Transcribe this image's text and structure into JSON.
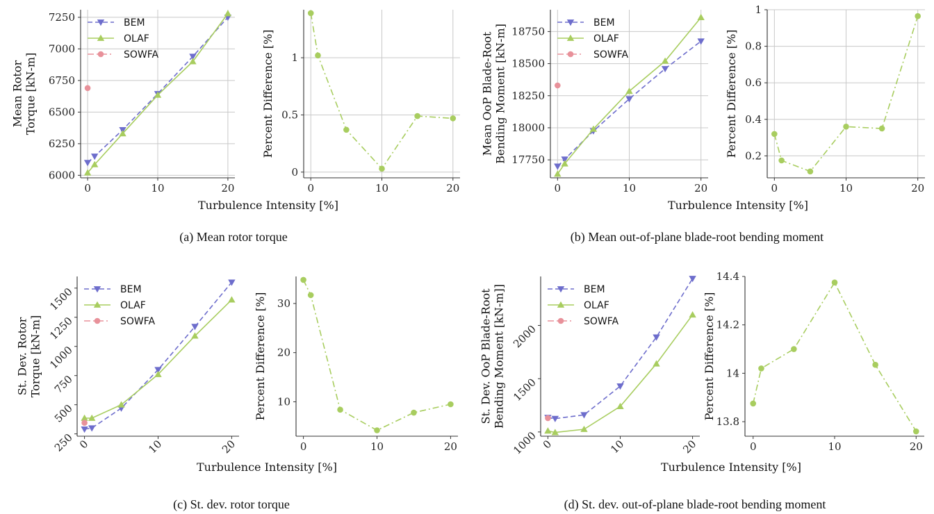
{
  "captions": {
    "a": "(a)  Mean rotor torque",
    "b": "(b)  Mean out-of-plane blade-root bending moment",
    "c": "(c)  St. dev. rotor torque",
    "d": "(d)  St. dev. out-of-plane blade-root bending moment"
  },
  "shared_xlabel": "Turbulence Intensity [%]",
  "colors": {
    "BEM": "#6d6dcc",
    "OLAF": "#a8cd5f",
    "SOWFA": "#e8919a",
    "grid": "#c8c8c8"
  },
  "chart_data": [
    {
      "id": "a-left",
      "type": "line",
      "xlim": [
        -1,
        21
      ],
      "ylim": [
        5980,
        7310
      ],
      "xticks": [
        0,
        10,
        20
      ],
      "yticks": [
        6000,
        6250,
        6500,
        6750,
        7000,
        7250
      ],
      "rotate_ticks": false,
      "ylabel": [
        "Mean Rotor",
        "Torque [kN-m]"
      ],
      "xlabel": "Turbulence Intensity [%]",
      "legend": "top-left",
      "grid": true,
      "series": [
        {
          "name": "BEM",
          "x": [
            0,
            1,
            5,
            10,
            15,
            20
          ],
          "y": [
            6100,
            6150,
            6360,
            6645,
            6940,
            7250
          ]
        },
        {
          "name": "OLAF",
          "x": [
            0,
            1,
            5,
            10,
            15,
            20
          ],
          "y": [
            6020,
            6085,
            6330,
            6635,
            6900,
            7280
          ]
        },
        {
          "name": "SOWFA",
          "x": [
            0
          ],
          "y": [
            6690
          ]
        }
      ]
    },
    {
      "id": "a-right",
      "type": "line",
      "xlim": [
        -1,
        21
      ],
      "ylim": [
        -0.05,
        1.42
      ],
      "xticks": [
        0,
        10,
        20
      ],
      "yticks": [
        0.0,
        0.5,
        1.0
      ],
      "rotate_ticks": false,
      "ylabel": [
        "Percent Difference [%]"
      ],
      "xlabel": "",
      "legend": "none",
      "grid": true,
      "series": [
        {
          "name": "",
          "x": [
            0,
            1,
            5,
            10,
            15,
            20
          ],
          "y": [
            1.39,
            1.02,
            0.37,
            0.03,
            0.49,
            0.47
          ]
        }
      ]
    },
    {
      "id": "b-left",
      "type": "line",
      "xlim": [
        -1,
        21
      ],
      "ylim": [
        17610,
        18920
      ],
      "xticks": [
        0,
        10,
        20
      ],
      "yticks": [
        17750,
        18000,
        18250,
        18500,
        18750
      ],
      "rotate_ticks": false,
      "ylabel": [
        "Mean OoP Blade-Root",
        "Bending Moment [kN-m]"
      ],
      "xlabel": "Turbulence Intensity [%]",
      "legend": "top-left",
      "grid": true,
      "series": [
        {
          "name": "BEM",
          "x": [
            0,
            1,
            5,
            10,
            15,
            20
          ],
          "y": [
            17700,
            17755,
            17975,
            18225,
            18460,
            18675
          ]
        },
        {
          "name": "OLAF",
          "x": [
            0,
            1,
            5,
            10,
            15,
            20
          ],
          "y": [
            17640,
            17720,
            17990,
            18285,
            18520,
            18860
          ]
        },
        {
          "name": "SOWFA",
          "x": [
            0
          ],
          "y": [
            18330
          ]
        }
      ]
    },
    {
      "id": "b-right",
      "type": "line",
      "xlim": [
        -1,
        21
      ],
      "ylim": [
        0.08,
        1.0
      ],
      "xticks": [
        0,
        10,
        20
      ],
      "yticks": [
        0.2,
        0.4,
        0.6,
        0.8,
        1.0
      ],
      "rotate_ticks": false,
      "ylabel": [
        "Percent Difference [%]"
      ],
      "xlabel": "",
      "legend": "none",
      "grid": true,
      "series": [
        {
          "name": "",
          "x": [
            0,
            1,
            5,
            10,
            15,
            20
          ],
          "y": [
            0.32,
            0.175,
            0.115,
            0.36,
            0.35,
            0.965
          ]
        }
      ]
    },
    {
      "id": "c-left",
      "type": "line",
      "xlim": [
        -1,
        21
      ],
      "ylim": [
        230,
        1600
      ],
      "xticks": [
        0,
        10,
        20
      ],
      "yticks": [
        250,
        500,
        750,
        1000,
        1250,
        1500
      ],
      "rotate_ticks": true,
      "ylabel": [
        "St. Dev. Rotor",
        "Torque [kN-m]"
      ],
      "xlabel": "Turbulence Intensity [%]",
      "legend": "top-left",
      "grid": false,
      "series": [
        {
          "name": "BEM",
          "x": [
            0,
            1,
            5,
            10,
            15,
            20
          ],
          "y": [
            290,
            300,
            470,
            800,
            1170,
            1550
          ]
        },
        {
          "name": "OLAF",
          "x": [
            0,
            1,
            5,
            10,
            15,
            20
          ],
          "y": [
            385,
            385,
            500,
            760,
            1090,
            1400
          ]
        },
        {
          "name": "SOWFA",
          "x": [
            0
          ],
          "y": [
            345
          ]
        }
      ]
    },
    {
      "id": "c-right",
      "type": "line",
      "xlim": [
        -1,
        21
      ],
      "ylim": [
        3,
        35.5
      ],
      "xticks": [
        0,
        10,
        20
      ],
      "yticks": [
        10,
        20,
        30
      ],
      "rotate_ticks": false,
      "ylabel": [
        "Percent Difference [%]"
      ],
      "xlabel": "",
      "legend": "none",
      "grid": false,
      "series": [
        {
          "name": "",
          "x": [
            0,
            1,
            5,
            10,
            15,
            20
          ],
          "y": [
            34.8,
            31.7,
            8.4,
            4.2,
            7.8,
            9.5
          ]
        }
      ]
    },
    {
      "id": "d-left",
      "type": "line",
      "xlim": [
        -1,
        21
      ],
      "ylim": [
        960,
        2460
      ],
      "xticks": [
        0,
        10,
        20
      ],
      "yticks": [
        1000,
        1500,
        2000
      ],
      "rotate_ticks": true,
      "ylabel": [
        "St. Dev. OoP Blade-Root",
        "Bending Moment [kN-m]]"
      ],
      "xlabel": "Turbulence Intensity [%]",
      "legend": "top-left",
      "grid": false,
      "series": [
        {
          "name": "BEM",
          "x": [
            0,
            1,
            5,
            10,
            15,
            20
          ],
          "y": [
            1135,
            1125,
            1160,
            1430,
            1890,
            2440
          ]
        },
        {
          "name": "OLAF",
          "x": [
            0,
            1,
            5,
            10,
            15,
            20
          ],
          "y": [
            1010,
            995,
            1025,
            1240,
            1640,
            2100
          ]
        },
        {
          "name": "SOWFA",
          "x": [
            0
          ],
          "y": [
            1130
          ]
        }
      ]
    },
    {
      "id": "d-right",
      "type": "line",
      "xlim": [
        -1,
        21
      ],
      "ylim": [
        13.74,
        14.4
      ],
      "xticks": [
        0,
        10,
        20
      ],
      "yticks": [
        13.8,
        14.0,
        14.2,
        14.4
      ],
      "rotate_ticks": false,
      "ylabel": [
        "Percent Difference [%]"
      ],
      "xlabel": "",
      "legend": "none",
      "grid": false,
      "series": [
        {
          "name": "",
          "x": [
            0,
            1,
            5,
            10,
            15,
            20
          ],
          "y": [
            13.875,
            14.02,
            14.1,
            14.375,
            14.035,
            13.76
          ]
        }
      ]
    }
  ]
}
